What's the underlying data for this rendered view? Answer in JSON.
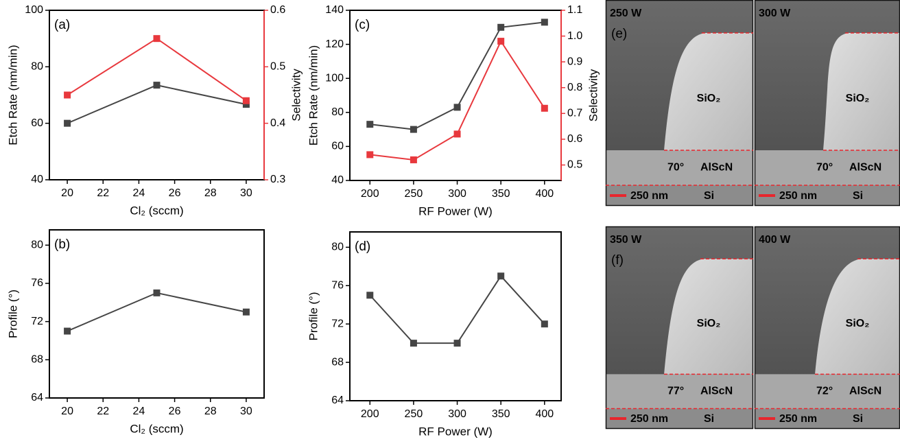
{
  "chart_data": [
    {
      "type": "line",
      "annotation": "(a)",
      "xlabel": "Cl₂ (sccm)",
      "ylabel": "Etch Rate (nm/min)",
      "y2label": "Selectivity",
      "x": [
        20,
        25,
        30
      ],
      "xlim": [
        19,
        31
      ],
      "xticks": [
        20,
        22,
        24,
        26,
        28,
        30
      ],
      "ylim": [
        40,
        100
      ],
      "yticks": [
        40,
        60,
        80,
        100
      ],
      "y2lim": [
        0.3,
        0.6
      ],
      "y2ticks": [
        0.3,
        0.4,
        0.5,
        0.6
      ],
      "y2color": "#e8383d",
      "series": [
        {
          "color": "#454545",
          "values": [
            60,
            73.5,
            66.7
          ]
        },
        {
          "color": "#e8383d",
          "axis": "y2",
          "values": [
            0.45,
            0.55,
            0.44
          ]
        }
      ]
    },
    {
      "type": "line",
      "annotation": "(b)",
      "xlabel": "Cl₂ (sccm)",
      "ylabel": "Profile (°)",
      "x": [
        20,
        25,
        30
      ],
      "xlim": [
        19,
        31
      ],
      "xticks": [
        20,
        22,
        24,
        26,
        28,
        30
      ],
      "ylim": [
        64,
        81.6
      ],
      "yticks": [
        64,
        68,
        72,
        76,
        80
      ],
      "series": [
        {
          "color": "#454545",
          "values": [
            71,
            75,
            73
          ]
        }
      ]
    },
    {
      "type": "line",
      "annotation": "(c)",
      "xlabel": "RF Power (W)",
      "ylabel": "Etch Rate (nm/min)",
      "y2label": "Selectivity",
      "x": [
        200,
        250,
        300,
        350,
        400
      ],
      "xlim": [
        177,
        419
      ],
      "xticks": [
        200,
        250,
        300,
        350,
        400
      ],
      "ylim": [
        40,
        140
      ],
      "yticks": [
        40,
        60,
        80,
        100,
        120,
        140
      ],
      "y2lim": [
        0.44,
        1.1
      ],
      "y2ticks": [
        0.5,
        0.6,
        0.7,
        0.8,
        0.9,
        {
          "value": 1,
          "label": "1.0"
        },
        1.1
      ],
      "y2color": "#e8383d",
      "series": [
        {
          "color": "#454545",
          "values": [
            73,
            70,
            83,
            130,
            133
          ]
        },
        {
          "color": "#e8383d",
          "axis": "y2",
          "values": [
            0.54,
            0.52,
            0.62,
            0.98,
            0.72
          ]
        }
      ]
    },
    {
      "type": "line",
      "annotation": "(d)",
      "xlabel": "RF Power (W)",
      "ylabel": "Profile (°)",
      "x": [
        200,
        250,
        300,
        350,
        400
      ],
      "xlim": [
        177,
        419
      ],
      "xticks": [
        200,
        250,
        300,
        350,
        400
      ],
      "ylim": [
        64,
        81.6
      ],
      "yticks": [
        64,
        68,
        72,
        76,
        80
      ],
      "series": [
        {
          "color": "#454545",
          "values": [
            75,
            70,
            70,
            77,
            72
          ]
        }
      ]
    }
  ],
  "images": [
    {
      "label": "(e)",
      "panels": [
        {
          "power": "250 W",
          "layer_top": "SiO₂",
          "angle": "70°",
          "layer_mid": "AlScN",
          "scale": "250 nm",
          "layer_bottom": "Si"
        },
        {
          "power": "300 W",
          "layer_top": "SiO₂",
          "angle": "70°",
          "layer_mid": "AlScN",
          "scale": "250 nm",
          "layer_bottom": "Si"
        }
      ]
    },
    {
      "label": "(f)",
      "panels": [
        {
          "power": "350 W",
          "layer_top": "SiO₂",
          "angle": "77°",
          "layer_mid": "AlScN",
          "scale": "250 nm",
          "layer_bottom": "Si"
        },
        {
          "power": "400 W",
          "layer_top": "SiO₂",
          "angle": "72°",
          "layer_mid": "AlScN",
          "scale": "250 nm",
          "layer_bottom": "Si"
        }
      ]
    }
  ]
}
